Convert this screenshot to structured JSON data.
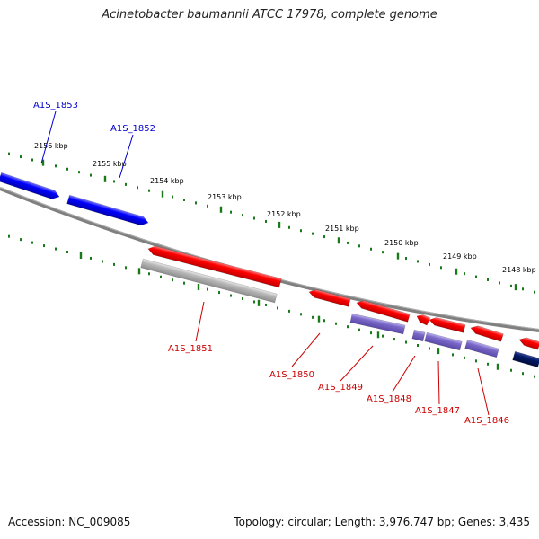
{
  "title": "Acinetobacter baumannii ATCC 17978, complete genome",
  "footer": {
    "accession": "Accession: NC_009085",
    "summary": "Topology: circular; Length: 3,976,747 bp; Genes: 3,435"
  },
  "colors": {
    "forward_label": "#0000cc",
    "reverse_label": "#cc0000",
    "forward_cds": "#0000ff",
    "reverse_cds": "#ff0000",
    "gene_bar": "#7b68c8",
    "pseudo_gene": "#b8b8b8",
    "dark_gene": "#001a66",
    "backbone": "#808080",
    "tick": "#1a7a1a"
  },
  "ticks": [
    {
      "label": "2156 kbp"
    },
    {
      "label": "2155 kbp"
    },
    {
      "label": "2154 kbp"
    },
    {
      "label": "2153 kbp"
    },
    {
      "label": "2152 kbp"
    },
    {
      "label": "2151 kbp"
    },
    {
      "label": "2150 kbp"
    },
    {
      "label": "2149 kbp"
    },
    {
      "label": "2148 kbp"
    }
  ],
  "genes": [
    {
      "name": "A1S_1853",
      "strand": "forward"
    },
    {
      "name": "A1S_1852",
      "strand": "forward"
    },
    {
      "name": "A1S_1851",
      "strand": "reverse"
    },
    {
      "name": "A1S_1850",
      "strand": "reverse"
    },
    {
      "name": "A1S_1849",
      "strand": "reverse"
    },
    {
      "name": "A1S_1848",
      "strand": "reverse"
    },
    {
      "name": "A1S_1847",
      "strand": "reverse"
    },
    {
      "name": "A1S_1846",
      "strand": "reverse"
    }
  ]
}
